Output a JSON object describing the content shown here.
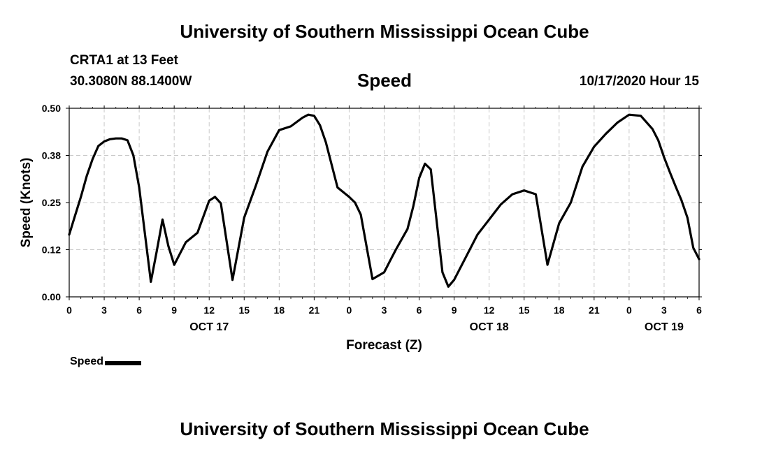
{
  "header": {
    "title": "University of Southern Mississippi Ocean Cube",
    "station": "CRTA1 at 13 Feet",
    "location": "30.3080N 88.1400W",
    "parameter": "Speed",
    "datetime": "10/17/2020 Hour 15"
  },
  "footer": {
    "title": "University of Southern Mississippi Ocean Cube"
  },
  "legend": {
    "label": "Speed"
  },
  "colors": {
    "line": "#000000",
    "grid": "#c8c8c8",
    "background": "#ffffff"
  },
  "chart_data": {
    "type": "line",
    "title": "Speed",
    "xlabel": "Forecast (Z)",
    "ylabel": "Speed (Knots)",
    "xlim": [
      0,
      54
    ],
    "ylim": [
      0,
      0.5
    ],
    "yticks": [
      0.0,
      0.125,
      0.25,
      0.375,
      0.5
    ],
    "ytick_labels": [
      "0.00",
      "0.12",
      "0.25",
      "0.38",
      "0.50"
    ],
    "xticks": [
      0,
      3,
      6,
      9,
      12,
      15,
      18,
      21,
      24,
      27,
      30,
      33,
      36,
      39,
      42,
      45,
      48,
      51,
      54
    ],
    "xtick_labels": [
      "0",
      "3",
      "6",
      "9",
      "12",
      "15",
      "18",
      "21",
      "0",
      "3",
      "6",
      "9",
      "12",
      "15",
      "18",
      "21",
      "0",
      "3",
      "6"
    ],
    "date_labels": [
      {
        "x": 12,
        "label": "OCT 17"
      },
      {
        "x": 36,
        "label": "OCT 18"
      },
      {
        "x": 51,
        "label": "OCT 19"
      }
    ],
    "grid": true,
    "legend_position": "bottom-left",
    "series": [
      {
        "name": "Speed",
        "x": [
          0,
          0.5,
          1,
          1.5,
          2,
          2.5,
          3,
          3.5,
          4,
          4.5,
          5,
          5.5,
          6,
          7,
          7.5,
          8,
          8.5,
          9,
          10,
          11,
          12,
          12.5,
          13,
          14,
          15,
          16,
          17,
          18,
          19,
          20,
          20.5,
          21,
          21.5,
          22,
          23,
          24,
          24.5,
          25,
          26,
          27,
          27.5,
          28,
          29,
          29.5,
          30,
          30.5,
          31,
          32,
          32.5,
          33,
          34,
          35,
          36,
          36.5,
          37,
          38,
          39,
          40,
          41,
          42,
          43,
          44,
          45,
          46,
          47,
          48,
          49,
          50,
          50.5,
          51,
          51.5,
          52,
          52.5,
          53,
          53.5,
          54
        ],
        "values": [
          0.165,
          0.215,
          0.265,
          0.32,
          0.365,
          0.4,
          0.412,
          0.418,
          0.42,
          0.42,
          0.415,
          0.375,
          0.29,
          0.04,
          0.12,
          0.205,
          0.135,
          0.085,
          0.145,
          0.17,
          0.255,
          0.265,
          0.248,
          0.045,
          0.21,
          0.295,
          0.385,
          0.442,
          0.452,
          0.475,
          0.483,
          0.48,
          0.455,
          0.41,
          0.29,
          0.265,
          0.25,
          0.218,
          0.047,
          0.065,
          0.095,
          0.125,
          0.18,
          0.24,
          0.315,
          0.353,
          0.338,
          0.065,
          0.027,
          0.045,
          0.105,
          0.165,
          0.205,
          0.225,
          0.245,
          0.272,
          0.282,
          0.272,
          0.085,
          0.195,
          0.25,
          0.345,
          0.398,
          0.432,
          0.462,
          0.483,
          0.48,
          0.445,
          0.415,
          0.37,
          0.33,
          0.292,
          0.255,
          0.21,
          0.13,
          0.1
        ]
      }
    ]
  }
}
